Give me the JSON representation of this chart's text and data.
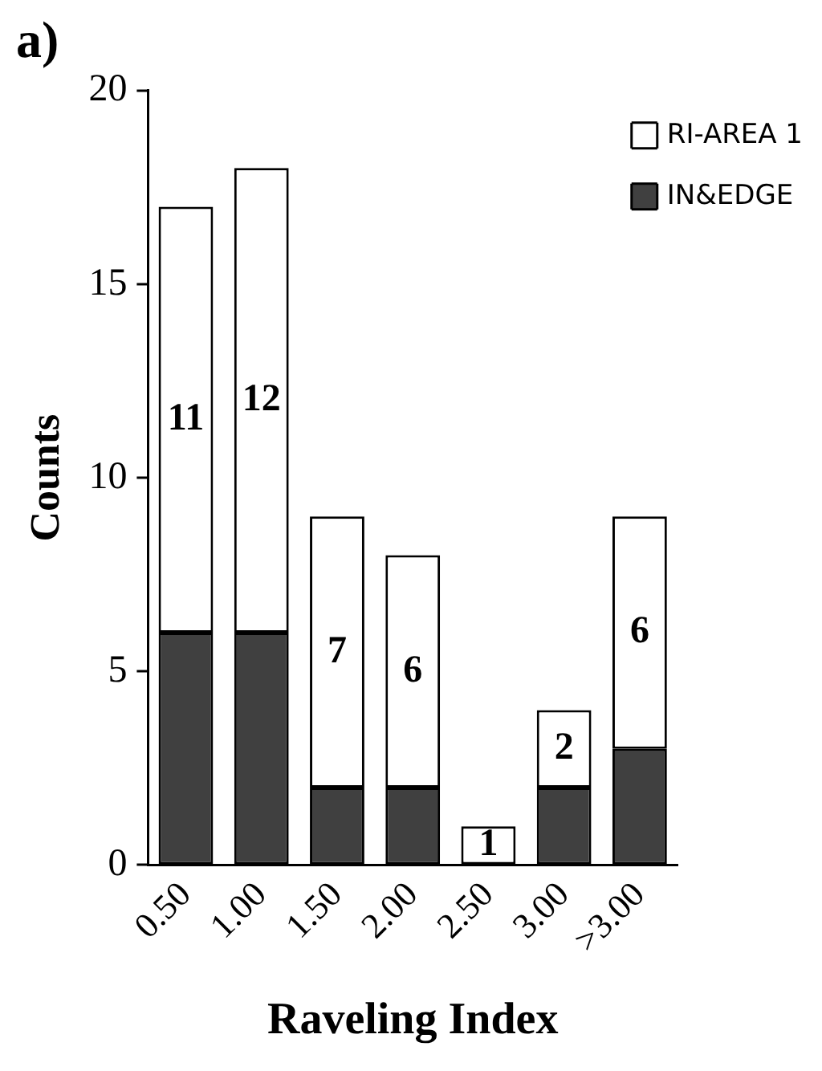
{
  "chart_data": {
    "type": "bar",
    "title": "a)",
    "xlabel": "Raveling Index",
    "ylabel": "Counts",
    "categories": [
      "0.50",
      "1.00",
      "1.50",
      "2.00",
      "2.50",
      "3.00",
      ">3.00"
    ],
    "stacked": true,
    "ylim": [
      0,
      20
    ],
    "yticks": [
      0,
      5,
      10,
      15,
      20
    ],
    "grid": false,
    "legend": "top right",
    "series": [
      {
        "name": "IN&EDGE",
        "color": "#404040",
        "values": [
          6,
          6,
          2,
          2,
          0,
          2,
          3
        ]
      },
      {
        "name": "RI-AREA 1",
        "color": "#ffffff",
        "values": [
          11,
          12,
          7,
          6,
          1,
          2,
          6
        ],
        "value_labels": [
          "11",
          "12",
          "7",
          "6",
          "1",
          "2",
          "6"
        ]
      }
    ]
  }
}
